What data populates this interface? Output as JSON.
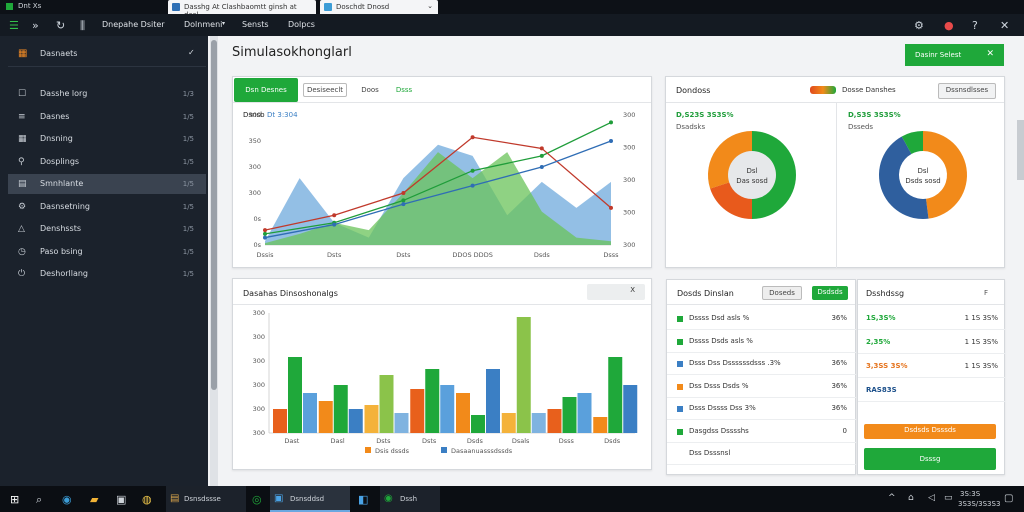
{
  "titlebar": {
    "app_title": "Dnt Xs",
    "tabs": [
      {
        "label": "Dasshg At Clashbaomtt ginsh at dasl"
      },
      {
        "label": "Doschdt Dnosd"
      }
    ]
  },
  "toolbar": {
    "menu": [
      "Dnepahe Dsiter",
      "Dolnmeni",
      "Sensts",
      "Dolpcs"
    ],
    "icons": [
      "menu-icon",
      "forward-icon",
      "refresh-icon",
      "filter-icon"
    ],
    "right_icons": [
      "user-icon",
      "notification-icon",
      "help-icon",
      "close-icon"
    ]
  },
  "sidebar": {
    "header": "Dasnaets",
    "items": [
      {
        "label": "Dasshe lorg",
        "shortcut": "1/3",
        "icon": "document-icon"
      },
      {
        "label": "Dasnes",
        "shortcut": "1/5",
        "icon": "list-icon"
      },
      {
        "label": "Dnsning",
        "shortcut": "1/5",
        "icon": "calendar-icon"
      },
      {
        "label": "Dosplings",
        "shortcut": "1/5",
        "icon": "link-icon"
      },
      {
        "label": "Smnhlante",
        "shortcut": "1/5",
        "icon": "simulation-icon",
        "active": true
      },
      {
        "label": "Dasnsetning",
        "shortcut": "1/5",
        "icon": "settings-icon"
      },
      {
        "label": "Denshssts",
        "shortcut": "1/5",
        "icon": "alert-icon"
      },
      {
        "label": "Paso bsing",
        "shortcut": "1/5",
        "icon": "clock-icon"
      },
      {
        "label": "Deshorllang",
        "shortcut": "1/5",
        "icon": "power-icon"
      }
    ]
  },
  "main": {
    "page_title": "Simulasokhonglarl",
    "primary_button": "Dasinr Selest",
    "colors": {
      "green": "#1fa83a",
      "orange": "#f28a1a",
      "blue": "#3b7fc4",
      "light_blue": "#7fb3e0",
      "red": "#e04a1c",
      "light_green": "#6cc25a"
    }
  },
  "line_panel": {
    "tabs": [
      "Dsn Desnes",
      "Desiseeclt",
      "Doos",
      "Dsss"
    ],
    "legend_a": "Dsnsb",
    "legend_b": "Dt 3:304",
    "y_left": [
      "300",
      "350",
      "300",
      "300",
      "0s",
      "0s"
    ],
    "y_right": [
      "300",
      "300",
      "300",
      "300",
      "300"
    ],
    "x_labels": [
      "Dssis",
      "Dsts",
      "Dsts",
      "DDOS DDDS",
      "Dsds",
      "Dsss"
    ]
  },
  "chart_data": [
    {
      "type": "line",
      "title": "",
      "x": [
        "Dssis",
        "Dsts",
        "Dsts",
        "DDOS DDDS",
        "Dsds",
        "Dsss"
      ],
      "ylim": [
        0,
        350
      ],
      "series": [
        {
          "values": [
            30,
            60,
            120,
            200,
            240,
            330
          ]
        },
        {
          "values": [
            40,
            80,
            140,
            290,
            260,
            100
          ]
        },
        {
          "values": [
            20,
            55,
            110,
            160,
            210,
            280
          ]
        }
      ]
    },
    {
      "type": "area",
      "title": "",
      "x": [
        0,
        1,
        2,
        3,
        4,
        5,
        6,
        7,
        8,
        9,
        10
      ],
      "ylim": [
        0,
        350
      ],
      "series": [
        {
          "values": [
            10,
            180,
            60,
            20,
            180,
            270,
            240,
            80,
            170,
            100,
            170
          ]
        },
        {
          "values": [
            5,
            30,
            60,
            40,
            140,
            250,
            180,
            250,
            90,
            20,
            10
          ]
        }
      ]
    },
    {
      "type": "pie",
      "labels": [
        "Dasd",
        "Dass Dsd",
        "Dsd"
      ],
      "values": [
        50,
        20,
        30
      ],
      "center_text": [
        "Dsl",
        "Das sosd"
      ]
    },
    {
      "type": "pie",
      "labels": [
        "Dasd",
        "Dass Dsd",
        "Dsd"
      ],
      "values": [
        48,
        44,
        8
      ],
      "center_text": [
        "Dsl",
        "Dsds sosd"
      ]
    },
    {
      "type": "bar",
      "title": "Dasahas Dinsoshonalgs",
      "categories": [
        "Dast",
        "Dasl",
        "Dsts",
        "Dsts",
        "Dsds",
        "Dsals",
        "Dsss",
        "Dsds"
      ],
      "ylim": [
        0,
        300
      ],
      "ytick_labels": [
        "300",
        "300",
        "300",
        "300",
        "300",
        "300"
      ],
      "series": [
        {
          "name": "Dsis dssds",
          "values": [
            60,
            80,
            70,
            110,
            100,
            50,
            60,
            40
          ]
        },
        {
          "name": "Dasaanuasssdssds",
          "values": [
            190,
            120,
            145,
            160,
            45,
            290,
            90,
            190
          ]
        },
        {
          "name": "",
          "values": [
            100,
            60,
            50,
            120,
            160,
            50,
            100,
            120
          ]
        }
      ]
    }
  ],
  "donut_panel": {
    "title": "Dondoss",
    "legend": "Dosse Danshes",
    "button": "Dssnsdlsses",
    "left": {
      "value": "D,S23S 3S3S%",
      "sub": "Dsadsks"
    },
    "right": {
      "value": "D,S3S 3S3S%",
      "sub": "Dsseds"
    }
  },
  "bar_panel": {
    "title": "Dasahas Dinsoshonalgs",
    "close": "X"
  },
  "stats_panel": {
    "title": "Dosds Dinslan",
    "buttons": [
      "Doseds",
      "Dsdsds"
    ],
    "rows": [
      {
        "label": "Dssss Dsd asls %",
        "value": "36%",
        "color": "#1fa83a"
      },
      {
        "label": "Dssss Dsds asls %",
        "value": "",
        "color": "#1fa83a"
      },
      {
        "label": "Dsss Dss Dssssssdsss .3%",
        "value": "36%",
        "color": "#3b7fc4"
      },
      {
        "label": "Dss Dsss Dsds %",
        "value": "36%",
        "color": "#f28a1a"
      },
      {
        "label": "Dsss Dssss Dss 3%",
        "value": "36%",
        "color": "#3b7fc4"
      },
      {
        "label": "Dasgdss Dsssshs",
        "value": "0",
        "color": "#1fa83a"
      },
      {
        "label": "Dss Dsssnsl",
        "value": "",
        "color": ""
      }
    ]
  },
  "right_stats": {
    "title": "Dsshdssg",
    "tag": "F",
    "rows": [
      {
        "a": "1S,3S%",
        "b": "1 1S 3S%",
        "color": "#1fa83a"
      },
      {
        "a": "2,35%",
        "b": "1 1S 3S%",
        "color": "#1fa83a"
      },
      {
        "a": "3,3SS 3S%",
        "b": "1 1S 3S%",
        "color": "#e5731c"
      },
      {
        "a": "RAS83S",
        "b": "",
        "color": "#1b4f8a"
      }
    ],
    "btn_orange": "Dsdsds Dsssds",
    "btn_green": "Dsssg"
  },
  "taskbar": {
    "app_label": "Dsnsdssse",
    "window_1": "Dsnsddsd",
    "window_2": "Dssh",
    "clock_time": "3S:3S",
    "clock_date": "3S3S/3S3S3"
  }
}
